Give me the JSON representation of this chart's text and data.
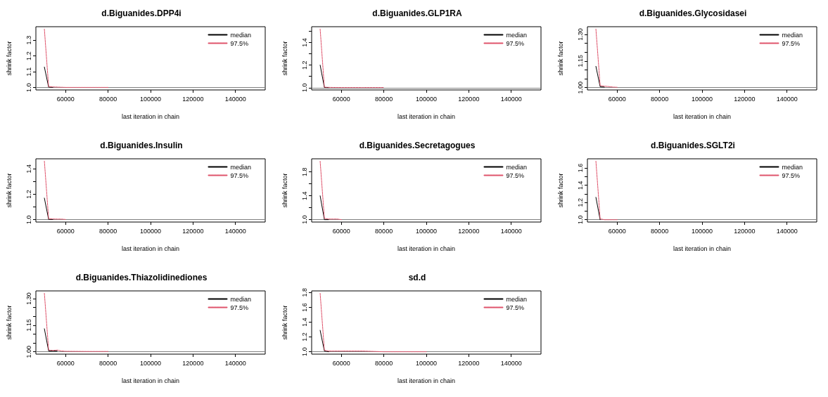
{
  "chart_data": [
    {
      "type": "line",
      "title": "d.Biguanides.DPP4i",
      "xlabel": "last iteration in chain",
      "ylabel": "shrink factor",
      "x": [
        50000,
        52000,
        54000,
        56000,
        58000,
        60000,
        70000,
        80000
      ],
      "xlim": [
        46000,
        154000
      ],
      "xticks": [
        60000,
        80000,
        100000,
        120000,
        140000
      ],
      "ylim": [
        0.985,
        1.385
      ],
      "yticks": [
        {
          "value": 1,
          "label": "1.0"
        },
        1.1,
        1.2,
        1.3
      ],
      "legend": "top right",
      "ref_lines": [
        {
          "axis": "y",
          "value": 1,
          "color": "#808080"
        }
      ],
      "series": [
        {
          "name": "median",
          "color": "#000000",
          "line_style": "solid",
          "values": [
            1.13,
            1.003,
            1.001,
            null,
            null,
            null,
            null,
            null
          ]
        },
        {
          "name": "97.5%",
          "color": "#df536b",
          "line_style": "dashed",
          "values": [
            1.37,
            1.006,
            1.004,
            1.003,
            1.002,
            1.001,
            1.001,
            1.001
          ]
        }
      ]
    },
    {
      "type": "line",
      "title": "d.Biguanides.GLP1RA",
      "xlabel": "last iteration in chain",
      "ylabel": "shrink factor",
      "x": [
        50000,
        52000,
        54000,
        56000,
        58000,
        60000,
        70000,
        80000
      ],
      "xlim": [
        46000,
        154000
      ],
      "xticks": [
        60000,
        80000,
        100000,
        120000,
        140000
      ],
      "ylim": [
        0.98,
        1.54
      ],
      "yticks": [
        {
          "value": 1,
          "label": "1.0"
        },
        {
          "value": 1.1,
          "label": null
        },
        1.2,
        {
          "value": 1.3,
          "label": null
        },
        1.4,
        {
          "value": 1.5,
          "label": null
        }
      ],
      "legend": "top right",
      "ref_lines": [
        {
          "axis": "y",
          "value": 1,
          "color": "#808080"
        }
      ],
      "series": [
        {
          "name": "median",
          "color": "#000000",
          "line_style": "solid",
          "values": [
            1.2,
            1.002,
            1.001,
            null,
            null,
            null,
            null,
            null
          ]
        },
        {
          "name": "97.5%",
          "color": "#df536b",
          "line_style": "dashed",
          "values": [
            1.52,
            1.004,
            1.003,
            1.002,
            1.002,
            1.001,
            1.001,
            1.001
          ]
        }
      ]
    },
    {
      "type": "line",
      "title": "d.Biguanides.Glycosidasei",
      "xlabel": "last iteration in chain",
      "ylabel": "shrink factor",
      "x": [
        50000,
        52000,
        54000,
        56000,
        58000,
        60000
      ],
      "xlim": [
        46000,
        154000
      ],
      "xticks": [
        60000,
        80000,
        100000,
        120000,
        140000
      ],
      "ylim": [
        0.987,
        1.343
      ],
      "yticks": [
        {
          "value": 1,
          "label": "1.00"
        },
        {
          "value": 1.05,
          "label": null
        },
        {
          "value": 1.1,
          "label": null
        },
        1.15,
        {
          "value": 1.2,
          "label": null
        },
        {
          "value": 1.25,
          "label": null
        },
        {
          "value": 1.3,
          "label": "1.30"
        }
      ],
      "legend": "top right",
      "ref_lines": [
        {
          "axis": "y",
          "value": 1,
          "color": "#808080"
        }
      ],
      "series": [
        {
          "name": "median",
          "color": "#000000",
          "line_style": "solid",
          "values": [
            1.12,
            1.005,
            1.003,
            null,
            null,
            null
          ]
        },
        {
          "name": "97.5%",
          "color": "#df536b",
          "line_style": "dashed",
          "values": [
            1.33,
            1.012,
            1.008,
            1.006,
            1.003,
            1.002
          ]
        }
      ]
    },
    {
      "type": "line",
      "title": "d.Biguanides.Insulin",
      "xlabel": "last iteration in chain",
      "ylabel": "shrink factor",
      "x": [
        50000,
        52000,
        54000,
        56000,
        58000,
        60000
      ],
      "xlim": [
        46000,
        154000
      ],
      "xticks": [
        60000,
        80000,
        100000,
        120000,
        140000
      ],
      "ylim": [
        0.982,
        1.478
      ],
      "yticks": [
        {
          "value": 1,
          "label": "1.0"
        },
        {
          "value": 1.1,
          "label": null
        },
        1.2,
        {
          "value": 1.3,
          "label": null
        },
        1.4
      ],
      "legend": "top right",
      "ref_lines": [
        {
          "axis": "y",
          "value": 1,
          "color": "#808080"
        }
      ],
      "series": [
        {
          "name": "median",
          "color": "#000000",
          "line_style": "solid",
          "values": [
            1.17,
            1.003,
            1.002,
            null,
            null,
            null
          ]
        },
        {
          "name": "97.5%",
          "color": "#df536b",
          "line_style": "dashed",
          "values": [
            1.46,
            1.008,
            1.006,
            1.005,
            1.005,
            1.002
          ]
        }
      ]
    },
    {
      "type": "line",
      "title": "d.Biguanides.Secretagogues",
      "xlabel": "last iteration in chain",
      "ylabel": "shrink factor",
      "x": [
        50000,
        52000,
        54000,
        56000,
        58000,
        60000
      ],
      "xlim": [
        46000,
        154000
      ],
      "xticks": [
        60000,
        80000,
        100000,
        120000,
        140000
      ],
      "ylim": [
        0.96,
        2.02
      ],
      "yticks": [
        {
          "value": 1,
          "label": "1.0"
        },
        {
          "value": 1.2,
          "label": null
        },
        1.4,
        {
          "value": 1.6,
          "label": null
        },
        1.8
      ],
      "legend": "top right",
      "ref_lines": [
        {
          "axis": "y",
          "value": 1,
          "color": "#808080"
        }
      ],
      "series": [
        {
          "name": "median",
          "color": "#000000",
          "line_style": "solid",
          "values": [
            1.4,
            1.0,
            1.0,
            null,
            null,
            null
          ]
        },
        {
          "name": "97.5%",
          "color": "#df536b",
          "line_style": "dashed",
          "values": [
            1.98,
            1.02,
            1.01,
            1.01,
            1.01,
            1.0
          ]
        }
      ]
    },
    {
      "type": "line",
      "title": "d.Biguanides.SGLT2i",
      "xlabel": "last iteration in chain",
      "ylabel": "shrink factor",
      "x": [
        50000,
        52000,
        54000,
        56000,
        58000,
        60000
      ],
      "xlim": [
        46000,
        154000
      ],
      "xticks": [
        60000,
        80000,
        100000,
        120000,
        140000
      ],
      "ylim": [
        0.973,
        1.707
      ],
      "yticks": [
        {
          "value": 1,
          "label": "1.0"
        },
        {
          "value": 1.1,
          "label": null
        },
        1.2,
        {
          "value": 1.3,
          "label": null
        },
        1.4,
        {
          "value": 1.5,
          "label": null
        },
        1.6
      ],
      "legend": "top right",
      "ref_lines": [
        {
          "axis": "y",
          "value": 1,
          "color": "#808080"
        }
      ],
      "series": [
        {
          "name": "median",
          "color": "#000000",
          "line_style": "solid",
          "values": [
            1.26,
            1.0,
            null,
            null,
            null,
            null
          ]
        },
        {
          "name": "97.5%",
          "color": "#df536b",
          "line_style": "dashed",
          "values": [
            1.68,
            1.01,
            1.0,
            1.0,
            1.0,
            1.0
          ]
        }
      ]
    },
    {
      "type": "line",
      "title": "d.Biguanides.Thiazolidinediones",
      "xlabel": "last iteration in chain",
      "ylabel": "shrink factor",
      "x": [
        50000,
        52000,
        54000,
        56000,
        58000,
        60000,
        70000,
        80000
      ],
      "xlim": [
        46000,
        154000
      ],
      "xticks": [
        60000,
        80000,
        100000,
        120000,
        140000
      ],
      "ylim": [
        0.987,
        1.343
      ],
      "yticks": [
        {
          "value": 1,
          "label": "1.00"
        },
        {
          "value": 1.05,
          "label": null
        },
        {
          "value": 1.1,
          "label": null
        },
        1.15,
        {
          "value": 1.2,
          "label": null
        },
        {
          "value": 1.25,
          "label": null
        },
        {
          "value": 1.3,
          "label": "1.30"
        }
      ],
      "legend": "top right",
      "ref_lines": [
        {
          "axis": "y",
          "value": 1,
          "color": "#808080"
        }
      ],
      "series": [
        {
          "name": "median",
          "color": "#000000",
          "line_style": "solid",
          "values": [
            1.13,
            1.005,
            1.004,
            1.005,
            null,
            null,
            null,
            null
          ]
        },
        {
          "name": "97.5%",
          "color": "#df536b",
          "line_style": "dashed",
          "values": [
            1.33,
            1.01,
            1.008,
            1.01,
            1.005,
            1.003,
            1.002,
            1.002
          ]
        }
      ]
    },
    {
      "type": "line",
      "title": "sd.d",
      "xlabel": "last iteration in chain",
      "ylabel": "shrink factor",
      "x": [
        50000,
        52000,
        54000,
        56000,
        58000,
        60000,
        70000,
        80000,
        100000
      ],
      "xlim": [
        46000,
        154000
      ],
      "xticks": [
        60000,
        80000,
        100000,
        120000,
        140000
      ],
      "ylim": [
        0.968,
        1.822
      ],
      "yticks": [
        {
          "value": 1,
          "label": "1.0"
        },
        1.2,
        1.4,
        1.6,
        1.8
      ],
      "legend": "top right",
      "ref_lines": [
        {
          "axis": "y",
          "value": 1,
          "color": "#808080"
        }
      ],
      "series": [
        {
          "name": "median",
          "color": "#000000",
          "line_style": "solid",
          "values": [
            1.29,
            1.01,
            1.0,
            null,
            null,
            null,
            null,
            null,
            null
          ]
        },
        {
          "name": "97.5%",
          "color": "#df536b",
          "line_style": "dashed",
          "values": [
            1.79,
            1.02,
            1.01,
            1.01,
            1.01,
            1.01,
            1.01,
            1.0,
            1.0
          ]
        }
      ]
    }
  ]
}
